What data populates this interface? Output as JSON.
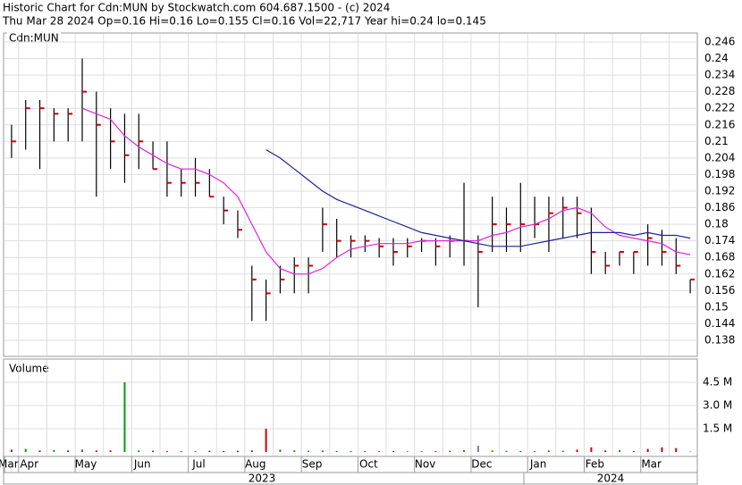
{
  "chart_data": {
    "type": "ohlc",
    "title": "Historic Chart for Cdn:MUN by Stockwatch.com 604.687.1500 - (c) 2024",
    "subtitle": "Thu Mar 28 2024  Op=0.16  Hi=0.16  Lo=0.155  Cl=0.16  Vol=22,717  Year hi=0.24  lo=0.145",
    "symbol_label": "Cdn:MUN",
    "volume_label": "Volume",
    "years": [
      "2023",
      "2024"
    ],
    "categories": [
      "Mar",
      "Apr",
      null,
      null,
      null,
      "May",
      null,
      null,
      null,
      "Jun",
      null,
      null,
      null,
      "Jul",
      null,
      null,
      null,
      "Aug",
      null,
      null,
      null,
      "Sep",
      null,
      null,
      null,
      "Oct",
      null,
      null,
      null,
      "Nov",
      null,
      null,
      null,
      "Dec",
      null,
      null,
      null,
      "Jan",
      null,
      null,
      null,
      "Feb",
      null,
      null,
      null,
      "Mar",
      null,
      null,
      null
    ],
    "high": [
      0.216,
      0.225,
      0.225,
      0.222,
      0.222,
      0.24,
      0.228,
      0.222,
      0.22,
      0.22,
      0.21,
      0.21,
      0.2,
      0.204,
      0.2,
      0.19,
      0.185,
      0.165,
      0.16,
      0.165,
      0.168,
      0.168,
      0.186,
      0.182,
      0.176,
      0.176,
      0.175,
      0.175,
      0.175,
      0.175,
      0.175,
      0.176,
      0.195,
      0.176,
      0.19,
      0.186,
      0.195,
      0.19,
      0.19,
      0.19,
      0.19,
      0.186,
      0.17,
      0.17,
      0.17,
      0.18,
      0.178,
      0.175,
      0.16
    ],
    "low": [
      0.204,
      0.207,
      0.2,
      0.21,
      0.21,
      0.21,
      0.19,
      0.2,
      0.195,
      0.2,
      0.2,
      0.19,
      0.19,
      0.19,
      0.19,
      0.18,
      0.175,
      0.145,
      0.145,
      0.155,
      0.155,
      0.155,
      0.17,
      0.168,
      0.168,
      0.17,
      0.168,
      0.165,
      0.168,
      0.17,
      0.165,
      0.168,
      0.165,
      0.15,
      0.17,
      0.17,
      0.17,
      0.175,
      0.17,
      0.175,
      0.175,
      0.162,
      0.162,
      0.165,
      0.162,
      0.165,
      0.165,
      0.162,
      0.155
    ],
    "close": [
      0.21,
      0.222,
      0.222,
      0.22,
      0.22,
      0.228,
      0.216,
      0.21,
      0.205,
      0.21,
      0.2,
      0.195,
      0.195,
      0.195,
      0.19,
      0.185,
      0.178,
      0.16,
      0.155,
      0.16,
      0.165,
      0.165,
      0.18,
      0.174,
      0.174,
      0.174,
      0.172,
      0.17,
      0.172,
      0.174,
      0.172,
      0.174,
      0.174,
      0.17,
      0.18,
      0.18,
      0.18,
      0.18,
      0.184,
      0.186,
      0.184,
      0.17,
      0.165,
      0.17,
      0.17,
      0.175,
      0.17,
      0.165,
      0.16
    ],
    "series": [
      {
        "name": "MA short",
        "color": "#e020e0",
        "values": [
          null,
          null,
          null,
          null,
          null,
          0.222,
          0.22,
          0.218,
          0.212,
          0.208,
          0.205,
          0.202,
          0.2,
          0.2,
          0.198,
          0.195,
          0.19,
          0.18,
          0.17,
          0.164,
          0.162,
          0.162,
          0.164,
          0.168,
          0.171,
          0.172,
          0.173,
          0.173,
          0.173,
          0.174,
          0.174,
          0.174,
          0.174,
          0.174,
          0.176,
          0.177,
          0.179,
          0.18,
          0.182,
          0.185,
          0.186,
          0.184,
          0.179,
          0.176,
          0.175,
          0.174,
          0.173,
          0.17,
          0.169
        ]
      },
      {
        "name": "MA long",
        "color": "#2020a0",
        "values": [
          null,
          null,
          null,
          null,
          null,
          null,
          null,
          null,
          null,
          null,
          null,
          null,
          null,
          null,
          null,
          null,
          null,
          null,
          0.207,
          0.204,
          0.2,
          0.196,
          0.192,
          0.189,
          0.187,
          0.185,
          0.183,
          0.181,
          0.179,
          0.177,
          0.176,
          0.175,
          0.174,
          0.173,
          0.172,
          0.172,
          0.172,
          0.173,
          0.174,
          0.175,
          0.176,
          0.177,
          0.177,
          0.177,
          0.176,
          0.177,
          0.176,
          0.176,
          0.175
        ]
      }
    ],
    "ylim": [
      0.1325,
      0.2489
    ],
    "yticks": [
      0.138,
      0.144,
      0.15,
      0.156,
      0.162,
      0.168,
      0.174,
      0.18,
      0.186,
      0.192,
      0.198,
      0.204,
      0.21,
      0.216,
      0.222,
      0.228,
      0.234,
      0.24,
      0.246
    ],
    "volume": {
      "values": [
        150000,
        200000,
        100000,
        120000,
        100000,
        150000,
        100000,
        100000,
        4500000,
        100000,
        80000,
        60000,
        50000,
        60000,
        80000,
        60000,
        80000,
        100000,
        1500000,
        150000,
        100000,
        80000,
        100000,
        60000,
        50000,
        60000,
        50000,
        60000,
        40000,
        50000,
        60000,
        80000,
        120000,
        400000,
        100000,
        80000,
        60000,
        60000,
        100000,
        80000,
        150000,
        300000,
        100000,
        120000,
        60000,
        200000,
        300000,
        250000,
        22717
      ],
      "colors": [
        "#d00000",
        "#00a000",
        "#d00000",
        "#00a000",
        "#d00000",
        "#00a000",
        "#d00000",
        "#d00000",
        "#00a000",
        "#00a000",
        "#d00000",
        "#d00000",
        "#d00000",
        "#00a000",
        "#d00000",
        "#d00000",
        "#d00000",
        "#d00000",
        "#d00000",
        "#00a000",
        "#00a000",
        "#00a000",
        "#00a000",
        "#d00000",
        "#d00000",
        "#00a000",
        "#d00000",
        "#d00000",
        "#00a000",
        "#00a000",
        "#d00000",
        "#00a000",
        "#00a000",
        "#808080",
        "#00a000",
        "#00a000",
        "#d00000",
        "#00a000",
        "#00a000",
        "#00a000",
        "#d00000",
        "#d00000",
        "#d00000",
        "#00a000",
        "#d00000",
        "#d00000",
        "#d00000",
        "#d00000",
        "#d00000"
      ]
    },
    "vlim": [
      -230000,
      5940000
    ],
    "vticks": [
      {
        "value": 1500000,
        "label": "1.5 M"
      },
      {
        "value": 3000000,
        "label": "3.0 M"
      },
      {
        "value": 4500000,
        "label": "4.5 M"
      }
    ],
    "grid": true
  }
}
